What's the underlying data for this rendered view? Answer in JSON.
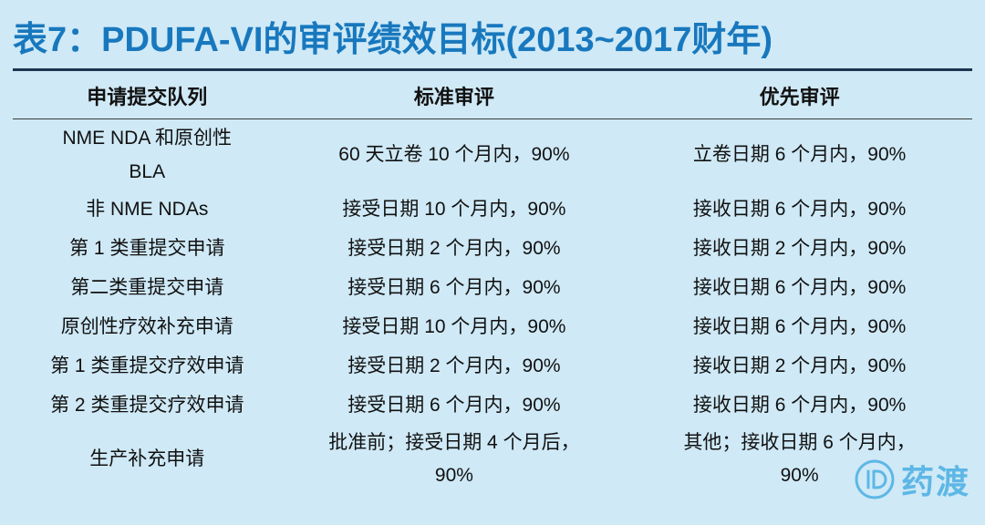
{
  "page": {
    "title": "表7：PDUFA-VI的审评绩效目标(2013~2017财年)"
  },
  "table": {
    "headers": [
      "申请提交队列",
      "标准审评",
      "优先审评"
    ],
    "rows": [
      [
        "NME NDA 和原创性\nBLA",
        "60 天立卷 10 个月内，90%",
        "立卷日期 6 个月内，90%"
      ],
      [
        "非 NME NDAs",
        "接受日期 10 个月内，90%",
        "接收日期 6 个月内，90%"
      ],
      [
        "第 1 类重提交申请",
        "接受日期 2 个月内，90%",
        "接收日期 2 个月内，90%"
      ],
      [
        "第二类重提交申请",
        "接受日期 6 个月内，90%",
        "接收日期 6 个月内，90%"
      ],
      [
        "原创性疗效补充申请",
        "接受日期 10 个月内，90%",
        "接收日期 6 个月内，90%"
      ],
      [
        "第 1 类重提交疗效申请",
        "接受日期 2 个月内，90%",
        "接收日期 2 个月内，90%"
      ],
      [
        "第 2 类重提交疗效申请",
        "接受日期 6 个月内，90%",
        "接收日期 6 个月内，90%"
      ],
      [
        "生产补充申请",
        "批准前；接受日期 4 个月后，\n90%",
        "其他；接收日期 6 个月内，\n90%"
      ]
    ]
  },
  "logo": {
    "text": "药渡"
  },
  "colors": {
    "background": "#cfe9f6",
    "title": "#1878be",
    "rule": "#1f3450",
    "thinrule": "#3a3a3a",
    "text": "#111111",
    "logo": "#57b5e6"
  }
}
